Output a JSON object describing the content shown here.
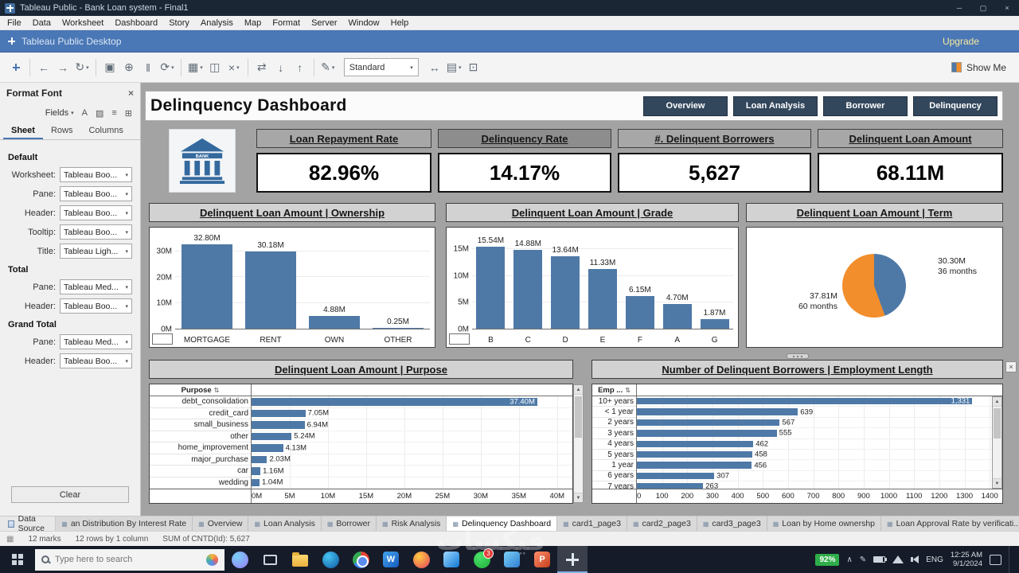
{
  "window": {
    "title": "Tableau Public - Bank Loan system - Final1"
  },
  "menu": {
    "items": [
      "File",
      "Data",
      "Worksheet",
      "Dashboard",
      "Story",
      "Analysis",
      "Map",
      "Format",
      "Server",
      "Window",
      "Help"
    ]
  },
  "appbar": {
    "brand": "Tableau Public Desktop",
    "upgrade": "Upgrade"
  },
  "toolbar": {
    "fit_selector": "Standard",
    "show_me": "Show Me",
    "icons_left": [
      {
        "name": "tableau-logo-icon",
        "glyph": ""
      },
      {
        "name": "separator"
      },
      {
        "name": "back-icon",
        "glyph": "←"
      },
      {
        "name": "forward-icon",
        "glyph": "→"
      },
      {
        "name": "replay-icon",
        "glyph": "↻",
        "caret": true
      },
      {
        "name": "separator"
      },
      {
        "name": "save-icon",
        "glyph": "▣"
      },
      {
        "name": "new-data-source-icon",
        "glyph": "⊕"
      },
      {
        "name": "pause-updates-icon",
        "glyph": "‖"
      },
      {
        "name": "auto-updates-icon",
        "glyph": "⟳",
        "caret": true
      },
      {
        "name": "separator"
      },
      {
        "name": "new-worksheet-icon",
        "glyph": "▦",
        "caret": true
      },
      {
        "name": "duplicate-icon",
        "glyph": "◫"
      },
      {
        "name": "clear-sheet-icon",
        "glyph": "×",
        "caret": true
      },
      {
        "name": "separator"
      },
      {
        "name": "swap-axes-icon",
        "glyph": "⇄"
      },
      {
        "name": "sort-ascending-icon",
        "glyph": "↓"
      },
      {
        "name": "sort-descending-icon",
        "glyph": "↑"
      },
      {
        "name": "separator"
      },
      {
        "name": "highlight-icon",
        "glyph": "✎",
        "caret": true
      }
    ],
    "icons_right": [
      {
        "name": "fit-axes-icon",
        "glyph": "↔"
      },
      {
        "name": "show-hide-cards-icon",
        "glyph": "▤",
        "caret": true
      },
      {
        "name": "presentation-mode-icon",
        "glyph": "⊡"
      }
    ]
  },
  "format_panel": {
    "title": "Format Font",
    "fields_label": "Fields",
    "icon_row": [
      {
        "name": "font-icon",
        "glyph": "A"
      },
      {
        "name": "shading-icon",
        "glyph": "▨"
      },
      {
        "name": "alignment-icon",
        "glyph": "≡"
      },
      {
        "name": "borders-icon",
        "glyph": "⊞"
      }
    ],
    "tabs": [
      "Sheet",
      "Rows",
      "Columns"
    ],
    "active_tab": "Sheet",
    "sections": [
      {
        "label": "Default",
        "rows": [
          {
            "label": "Worksheet:",
            "value": "Tableau Boo..."
          },
          {
            "label": "Pane:",
            "value": "Tableau Boo..."
          },
          {
            "label": "Header:",
            "value": "Tableau Boo..."
          },
          {
            "label": "Tooltip:",
            "value": "Tableau Boo..."
          },
          {
            "label": "Title:",
            "value": "Tableau Ligh..."
          }
        ]
      },
      {
        "label": "Total",
        "rows": [
          {
            "label": "Pane:",
            "value": "Tableau Med..."
          },
          {
            "label": "Header:",
            "value": "Tableau Boo..."
          }
        ]
      },
      {
        "label": "Grand Total",
        "rows": [
          {
            "label": "Pane:",
            "value": "Tableau Med..."
          },
          {
            "label": "Header:",
            "value": "Tableau Boo..."
          }
        ]
      }
    ],
    "clear_button": "Clear"
  },
  "dashboard": {
    "title": "Delinquency Dashboard",
    "nav_buttons": [
      "Overview",
      "Loan Analysis",
      "Borrower",
      "Delinquency"
    ],
    "bank_logo_text": "BANK",
    "kpis": [
      {
        "label": "Loan Repayment Rate",
        "value": "82.96%"
      },
      {
        "label": "Delinquency Rate",
        "value": "14.17%",
        "selected": true
      },
      {
        "label": "#. Delinquent Borrowers",
        "value": "5,627"
      },
      {
        "label": "Delinquent Loan Amount",
        "value": "68.11M"
      }
    ]
  },
  "chart_data": [
    {
      "id": "ownership",
      "type": "bar",
      "title": "Delinquent Loan Amount | Ownership",
      "categories": [
        "MORTGAGE",
        "RENT",
        "OWN",
        "OTHER"
      ],
      "values": [
        32.8,
        30.18,
        4.88,
        0.25
      ],
      "value_labels": [
        "32.80M",
        "30.18M",
        "4.88M",
        "0.25M"
      ],
      "ymax": 35,
      "yticks": [
        0,
        10,
        20,
        30
      ],
      "ytick_labels": [
        "0M",
        "10M",
        "20M",
        "30M"
      ],
      "bar_color": "#4e79a7"
    },
    {
      "id": "grade",
      "type": "bar",
      "title": "Delinquent Loan Amount | Grade",
      "categories": [
        "B",
        "C",
        "D",
        "E",
        "F",
        "A",
        "G"
      ],
      "values": [
        15.54,
        14.88,
        13.64,
        11.33,
        6.15,
        4.7,
        1.87
      ],
      "value_labels": [
        "15.54M",
        "14.88M",
        "13.64M",
        "11.33M",
        "6.15M",
        "4.70M",
        "1.87M"
      ],
      "ymax": 17,
      "yticks": [
        0,
        5,
        10,
        15
      ],
      "ytick_labels": [
        "0M",
        "5M",
        "10M",
        "15M"
      ],
      "bar_color": "#4e79a7"
    },
    {
      "id": "term",
      "type": "pie",
      "title": "Delinquent Loan Amount | Term",
      "slices": [
        {
          "label": "36 months",
          "value": 30.3,
          "value_label": "30.30M",
          "color": "#4e79a7"
        },
        {
          "label": "60 months",
          "value": 37.81,
          "value_label": "37.81M",
          "color": "#f28e2b"
        }
      ]
    },
    {
      "id": "purpose",
      "type": "hbar",
      "title": "Delinquent Loan Amount | Purpose",
      "col_header": "Purpose",
      "categories": [
        "debt_consolidation",
        "credit_card",
        "small_business",
        "other",
        "home_improvement",
        "major_purchase",
        "car",
        "wedding"
      ],
      "values": [
        37.4,
        7.05,
        6.94,
        5.24,
        4.13,
        2.03,
        1.16,
        1.04
      ],
      "value_labels": [
        "37.40M",
        "7.05M",
        "6.94M",
        "5.24M",
        "4.13M",
        "2.03M",
        "1.16M",
        "1.04M"
      ],
      "xmax": 42,
      "xticks": [
        0,
        5,
        10,
        15,
        20,
        25,
        30,
        35,
        40
      ],
      "xtick_labels": [
        "0M",
        "5M",
        "10M",
        "15M",
        "20M",
        "25M",
        "30M",
        "35M",
        "40M"
      ],
      "bar_color": "#4e79a7"
    },
    {
      "id": "employment",
      "type": "hbar",
      "title": "Number of Delinquent Borrowers | Employment Length",
      "col_header": "Emp ...",
      "categories": [
        "10+ years",
        "< 1 year",
        "2 years",
        "3 years",
        "4 years",
        "5 years",
        "1 year",
        "6 years",
        "7 years"
      ],
      "values": [
        1331,
        639,
        567,
        555,
        462,
        458,
        456,
        307,
        263
      ],
      "value_labels": [
        "1,331",
        "639",
        "567",
        "555",
        "462",
        "458",
        "456",
        "307",
        "263"
      ],
      "xmax": 1450,
      "xticks": [
        0,
        100,
        200,
        300,
        400,
        500,
        600,
        700,
        800,
        900,
        1000,
        1100,
        1200,
        1300,
        1400
      ],
      "xtick_labels": [
        "0",
        "100",
        "200",
        "300",
        "400",
        "500",
        "600",
        "700",
        "800",
        "900",
        "1000",
        "1100",
        "1200",
        "1300",
        "1400"
      ],
      "bar_color": "#4e79a7"
    }
  ],
  "bottom_tabs": {
    "data_source_label": "Data Source",
    "tabs": [
      "an Distribution By Interest Rate",
      "Overview",
      "Loan Analysis",
      "Borrower",
      "Risk Analysis",
      "Delinquency Dashboard",
      "card1_page3",
      "card2_page3",
      "card3_page3",
      "Loan by Home ownershp",
      "Loan Approval Rate by verificati..."
    ],
    "active_index": 5
  },
  "status_bar": {
    "marks": "12 marks",
    "dimensions": "12 rows by 1 column",
    "aggregate": "SUM of CNTD(Id): 5,627"
  },
  "taskbar": {
    "search_placeholder": "Type here to search",
    "icons": [
      {
        "name": "copilot-icon",
        "shape": "circle",
        "c1": "#79d0f5",
        "c2": "#9a7bf7"
      },
      {
        "name": "task-view-icon",
        "shape": "outline"
      },
      {
        "name": "file-explorer-icon",
        "shape": "folder"
      },
      {
        "name": "edge-icon",
        "shape": "circle",
        "c1": "#49c3f2",
        "c2": "#0c59a4"
      },
      {
        "name": "chrome-icon",
        "shape": "chrome"
      },
      {
        "name": "word-icon",
        "shape": "square",
        "c1": "#41a5ee",
        "c2": "#185abd",
        "letter": "W"
      },
      {
        "name": "firefox-icon",
        "shape": "circle",
        "c1": "#ffcb42",
        "c2": "#e3425e"
      },
      {
        "name": "store-icon",
        "shape": "square",
        "c1": "#9fd8ff",
        "c2": "#0f78d4"
      },
      {
        "name": "whatsapp-icon",
        "shape": "circle",
        "c1": "#4ae06a",
        "c2": "#1faf38",
        "badge": "3"
      },
      {
        "name": "photos-icon",
        "shape": "square",
        "c1": "#7bd3f7",
        "c2": "#2f7dd1"
      },
      {
        "name": "powerpoint-icon",
        "shape": "square",
        "c1": "#ff8f6b",
        "c2": "#c43e1c",
        "letter": "P"
      },
      {
        "name": "tableau-icon",
        "shape": "tableau",
        "active": true
      }
    ],
    "tray": {
      "battery": "92%",
      "lang": "ENG",
      "time": "12:25 AM",
      "date": "9/1/2024"
    }
  },
  "watermark": "فيكسات"
}
